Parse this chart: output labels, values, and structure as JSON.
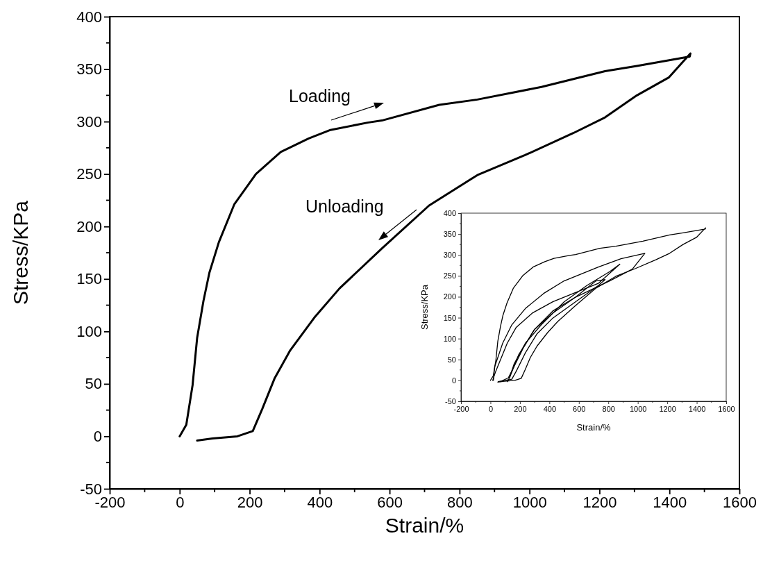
{
  "chart_data": [
    {
      "type": "line",
      "xlabel": "Strain/%",
      "ylabel": "Stress/KPa",
      "xlim": [
        -200,
        1600
      ],
      "ylim": [
        -50,
        400
      ],
      "xticks": [
        -200,
        0,
        200,
        400,
        600,
        800,
        1000,
        1200,
        1400,
        1600
      ],
      "yticks": [
        -50,
        0,
        50,
        100,
        150,
        200,
        250,
        300,
        350,
        400
      ],
      "line_style": "solid",
      "series": [
        {
          "color": "#000000",
          "x": [
            0,
            19,
            37,
            50,
            68,
            85,
            112,
            156,
            218,
            289,
            369,
            431,
            537,
            578,
            742,
            851,
            1034,
            1216,
            1307,
            1458,
            1460,
            1398,
            1307,
            1216,
            1125,
            987,
            851,
            713,
            578,
            457,
            387,
            316,
            271,
            236,
            209,
            165,
            94,
            50
          ],
          "values": [
            0,
            11,
            49,
            94,
            129,
            156,
            185,
            221,
            250,
            271,
            284,
            292,
            299,
            301,
            316,
            321,
            333,
            348,
            353,
            362,
            365,
            342,
            325,
            304,
            289,
            268,
            249,
            220,
            179,
            141,
            114,
            82,
            55,
            26,
            5,
            0,
            -2,
            -4
          ]
        }
      ],
      "annotations": [
        "Loading",
        "Unloading"
      ]
    },
    {
      "type": "line",
      "xlabel": "Strain/%",
      "ylabel": "Stress/KPa",
      "xlim": [
        -200,
        1600
      ],
      "ylim": [
        -50,
        400
      ],
      "xticks": [
        -200,
        0,
        200,
        400,
        600,
        800,
        1000,
        1200,
        1400,
        1600
      ],
      "yticks": [
        -50,
        0,
        50,
        100,
        150,
        200,
        250,
        300,
        350,
        400
      ],
      "line_style": "solid",
      "series": [
        {
          "color": "#000000",
          "x": [
            0,
            19,
            37,
            50,
            68,
            85,
            112,
            156,
            218,
            289,
            369,
            431,
            537,
            578,
            742,
            851,
            1034,
            1216,
            1307,
            1458,
            1460,
            1398,
            1307,
            1216,
            1125,
            987,
            851,
            713,
            578,
            457,
            387,
            316,
            271,
            236,
            209,
            165,
            94,
            50
          ],
          "values": [
            0,
            11,
            49,
            94,
            129,
            156,
            185,
            221,
            250,
            271,
            284,
            292,
            299,
            301,
            316,
            321,
            333,
            348,
            353,
            362,
            365,
            342,
            325,
            304,
            289,
            268,
            249,
            220,
            179,
            141,
            114,
            82,
            55,
            26,
            5,
            0,
            -2,
            -4
          ]
        },
        {
          "color": "#000000",
          "x": [
            20,
            29,
            83,
            145,
            237,
            361,
            500,
            732,
            886,
            1048,
            963,
            809,
            577,
            423,
            299,
            222,
            160,
            121,
            67
          ],
          "values": [
            0,
            33,
            89,
            133,
            172,
            208,
            238,
            271,
            291,
            304,
            266,
            238,
            199,
            166,
            122,
            77,
            33,
            6,
            -3
          ]
        },
        {
          "color": "#000000",
          "x": [
            15,
            36,
            114,
            175,
            284,
            423,
            577,
            732,
            878,
            809,
            654,
            500,
            345,
            237,
            160,
            129,
            114
          ],
          "values": [
            0,
            22,
            89,
            127,
            161,
            188,
            210,
            232,
            278,
            260,
            227,
            188,
            133,
            89,
            39,
            6,
            -3
          ]
        },
        {
          "color": "#000000",
          "x": [
            129,
            191,
            299,
            423,
            577,
            716,
            778,
            732,
            577,
            423,
            315,
            237,
            175,
            145,
            52
          ],
          "values": [
            6,
            61,
            122,
            161,
            199,
            238,
            241,
            227,
            188,
            149,
            111,
            66,
            22,
            3,
            -3
          ]
        }
      ]
    }
  ]
}
